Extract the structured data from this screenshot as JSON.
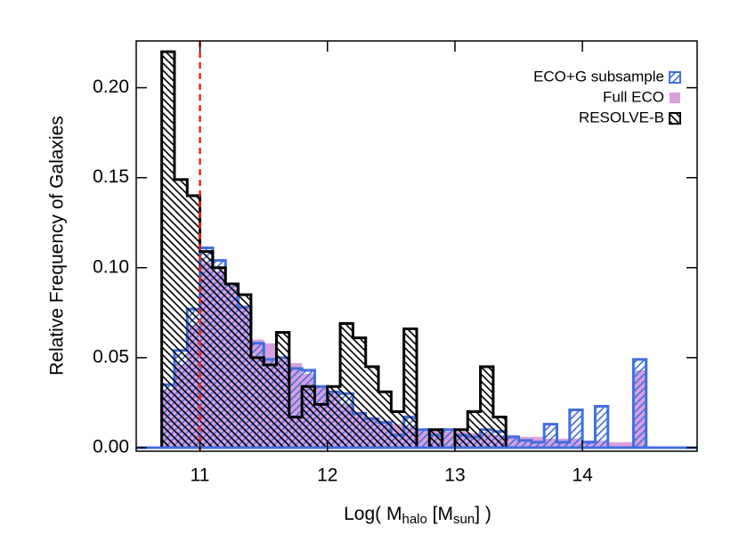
{
  "chart_data": {
    "type": "histogram",
    "xlabel": [
      "Log( M",
      "halo",
      " [M",
      "sun",
      "] )"
    ],
    "ylabel": "Relative Frequency of Galaxies",
    "bins": [
      10.7,
      10.8,
      10.9,
      11.0,
      11.1,
      11.2,
      11.3,
      11.4,
      11.5,
      11.6,
      11.7,
      11.8,
      11.9,
      12.0,
      12.1,
      12.2,
      12.3,
      12.4,
      12.5,
      12.6,
      12.7,
      12.8,
      12.9,
      13.0,
      13.1,
      13.2,
      13.3,
      13.4,
      13.5,
      13.6,
      13.7,
      13.8,
      13.9,
      14.0,
      14.1,
      14.2,
      14.3,
      14.4,
      14.5
    ],
    "series": [
      {
        "name": "Full ECO",
        "color": "#d9a0dd",
        "hatch": "solid",
        "values": [
          0.032,
          0.046,
          0.068,
          0.103,
          0.098,
          0.09,
          0.079,
          0.06,
          0.058,
          0.05,
          0.047,
          0.041,
          0.034,
          0.03,
          0.024,
          0.02,
          0.017,
          0.015,
          0.013,
          0.012,
          0.01,
          0.01,
          0.009,
          0.009,
          0.008,
          0.008,
          0.007,
          0.007,
          0.006,
          0.006,
          0.005,
          0.005,
          0.005,
          0.004,
          0.004,
          0.003,
          0.003,
          0.043
        ]
      },
      {
        "name": "ECO+G subsample",
        "color": "#3f6fe0",
        "hatch": "/",
        "values": [
          0.035,
          0.054,
          0.077,
          0.111,
          0.104,
          0.091,
          0.078,
          0.058,
          0.049,
          0.05,
          0.044,
          0.043,
          0.034,
          0.031,
          0.03,
          0.019,
          0.016,
          0.014,
          0.007,
          0.017,
          0.01,
          0.007,
          0.01,
          0.007,
          0.006,
          0.01,
          0.009,
          0.006,
          0.004,
          0.003,
          0.013,
          0.003,
          0.021,
          0.003,
          0.023,
          0.0,
          0.0,
          0.049
        ]
      },
      {
        "name": "RESOLVE-B",
        "color": "#000000",
        "hatch": "\\",
        "values": [
          0.22,
          0.149,
          0.14,
          0.109,
          0.1,
          0.091,
          0.085,
          0.05,
          0.046,
          0.064,
          0.017,
          0.034,
          0.024,
          0.034,
          0.069,
          0.061,
          0.045,
          0.031,
          0.02,
          0.066,
          0.0,
          0.01,
          0.0,
          0.01,
          0.02,
          0.045,
          0.017,
          0,
          0,
          0,
          0,
          0,
          0,
          0,
          0,
          0,
          0,
          0
        ]
      }
    ],
    "legend_order": [
      1,
      0,
      2
    ],
    "vline": {
      "x": 11.0,
      "color": "#e8281e"
    },
    "xlim": [
      10.5,
      14.9
    ],
    "ylim": [
      -0.002,
      0.226
    ],
    "xticks": [
      11,
      12,
      13,
      14
    ],
    "yticks": [
      {
        "value": 0,
        "label": "0.00"
      },
      {
        "value": 0.05,
        "label": "0.05"
      },
      {
        "value": 0.1,
        "label": "0.10"
      },
      {
        "value": 0.15,
        "label": "0.15"
      },
      {
        "value": 0.2,
        "label": "0.20"
      }
    ],
    "legend": "upper right"
  }
}
